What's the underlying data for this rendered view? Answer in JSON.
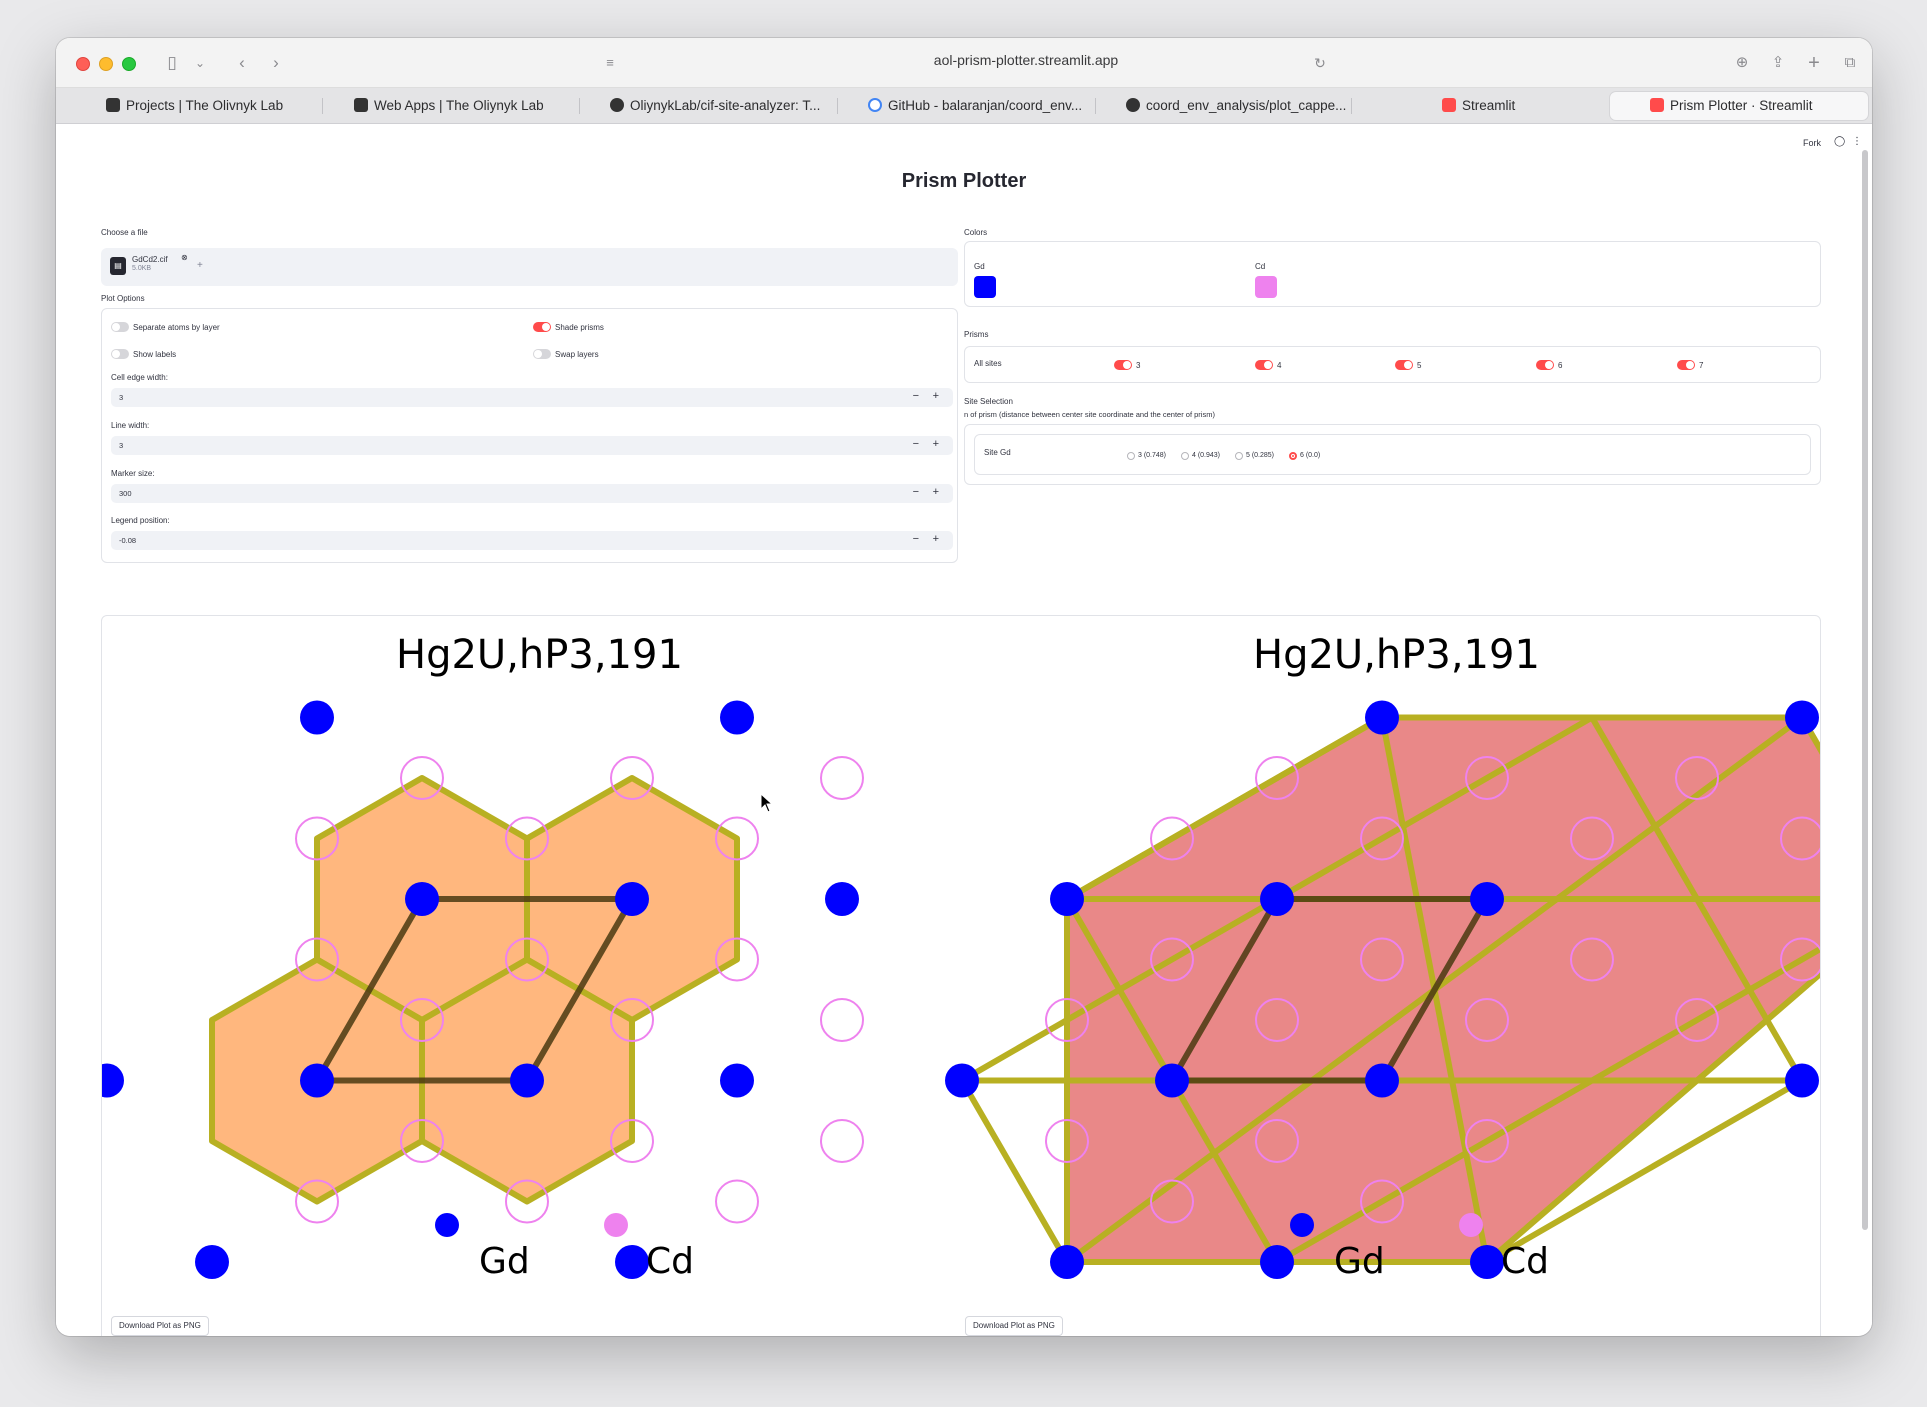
{
  "browser": {
    "url": "aol-prism-plotter.streamlit.app",
    "tabs": [
      {
        "label": "Projects | The Olivnyk Lab",
        "icon": "lab-logo-icon"
      },
      {
        "label": "Web Apps | The Oliynyk Lab",
        "icon": "lab-logo-icon"
      },
      {
        "label": "OliynykLab/cif-site-analyzer: T...",
        "icon": "github-icon"
      },
      {
        "label": "GitHub - balaranjan/coord_env...",
        "icon": "google-icon"
      },
      {
        "label": "coord_env_analysis/plot_cappe...",
        "icon": "github-icon"
      },
      {
        "label": "Streamlit",
        "icon": "streamlit-icon"
      },
      {
        "label": "Prism Plotter · Streamlit",
        "icon": "streamlit-icon"
      }
    ]
  },
  "header": {
    "fork_label": "Fork"
  },
  "app": {
    "title": "Prism Plotter"
  },
  "uploader": {
    "label": "Choose a file",
    "file_name": "GdCd2.cif",
    "file_size": "5.0KB"
  },
  "plot_options": {
    "label": "Plot Options",
    "toggles": [
      {
        "label": "Separate atoms by layer",
        "on": false
      },
      {
        "label": "Shade prisms",
        "on": true
      },
      {
        "label": "Show labels",
        "on": false
      },
      {
        "label": "Swap layers",
        "on": false
      }
    ],
    "inputs": [
      {
        "label": "Cell edge width:",
        "value": "3"
      },
      {
        "label": "Line width:",
        "value": "3"
      },
      {
        "label": "Marker size:",
        "value": "300"
      },
      {
        "label": "Legend position:",
        "value": "-0.08"
      }
    ]
  },
  "colors": {
    "label": "Colors",
    "items": [
      {
        "label": "Gd",
        "hex": "#0000ff"
      },
      {
        "label": "Cd",
        "hex": "#ee82ee"
      }
    ]
  },
  "prisms": {
    "label": "Prisms",
    "row_label": "All sites",
    "options": [
      "3",
      "4",
      "5",
      "6",
      "7"
    ]
  },
  "site_selection": {
    "label": "Site Selection",
    "help": "n of prism (distance between center site coordinate and the center of prism)",
    "site_label": "Site Gd",
    "options": [
      {
        "label": "3 (0.748)",
        "selected": false
      },
      {
        "label": "4 (0.943)",
        "selected": false
      },
      {
        "label": "5 (0.285)",
        "selected": false
      },
      {
        "label": "6 (0.0)",
        "selected": true
      }
    ]
  },
  "plots": [
    {
      "title": "Hg2U,hP3,191",
      "legend": [
        "Gd",
        "Cd"
      ],
      "download_label": "Download Plot as PNG",
      "prism_fill": "#ffb377"
    },
    {
      "title": "Hg2U,hP3,191",
      "legend": [
        "Gd",
        "Cd"
      ],
      "download_label": "Download Plot as PNG",
      "prism_fill": "#e88484"
    }
  ],
  "theme": {
    "accent": "#ff4b4b",
    "prism_edge": "#b8b022",
    "cell_edge": "#4a3a10"
  }
}
